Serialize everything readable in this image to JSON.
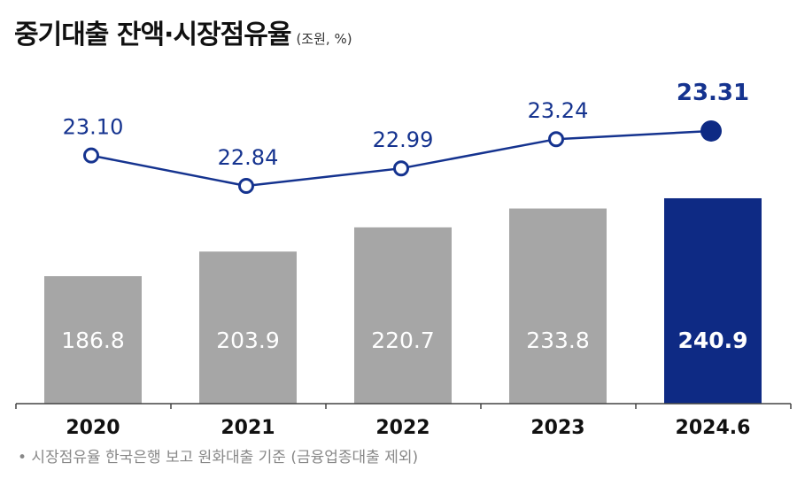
{
  "chart_data": {
    "type": "bar+line",
    "title": "중기대출 잔액·시장점유율",
    "unit_label": "(조원, %)",
    "categories": [
      "2020",
      "2021",
      "2022",
      "2023",
      "2024.6"
    ],
    "series": [
      {
        "type": "bar",
        "values": [
          186.8,
          203.9,
          220.7,
          233.8,
          240.9
        ],
        "labels": [
          "186.8",
          "203.9",
          "220.7",
          "233.8",
          "240.9"
        ]
      },
      {
        "type": "line",
        "values": [
          23.1,
          22.84,
          22.99,
          23.24,
          23.31
        ],
        "labels": [
          "23.10",
          "22.84",
          "22.99",
          "23.24",
          "23.31"
        ]
      }
    ],
    "highlight_index": 4,
    "grid": false,
    "legend": "none",
    "footnote": "• 시장점유율 한국은행 보고 원화대출 기준 (금융업종대출 제외)",
    "colors": {
      "bar": "#a6a6a6",
      "highlight": "#0e2a84",
      "line": "#15338f",
      "text_dark": "#111111",
      "note": "#888888"
    }
  }
}
